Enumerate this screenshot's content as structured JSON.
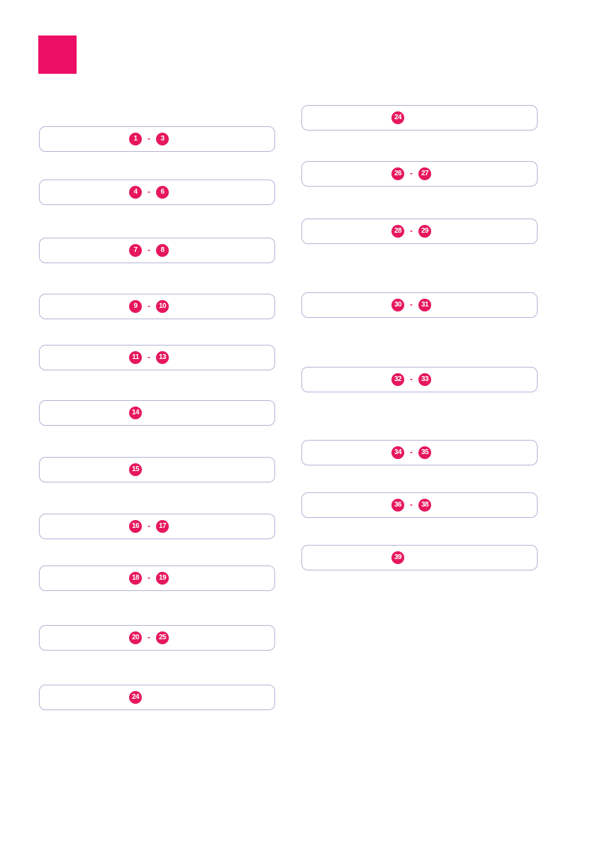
{
  "header": {
    "logo_color": "#ed0f66"
  },
  "colors": {
    "page_background": "#ffffff",
    "box_border": "#b4b3d8",
    "badge_fill": "#e6175c",
    "badge_text": "#ffffff"
  },
  "range_separator": "-",
  "columns": [
    {
      "name": "left",
      "boxes": [
        {
          "badges": [
            "1",
            "3"
          ]
        },
        {
          "badges": [
            "4",
            "6"
          ]
        },
        {
          "badges": [
            "7",
            "8"
          ]
        },
        {
          "badges": [
            "9",
            "10"
          ]
        },
        {
          "badges": [
            "11",
            "13"
          ]
        },
        {
          "badges": [
            "14"
          ]
        },
        {
          "badges": [
            "15"
          ]
        },
        {
          "badges": [
            "16",
            "17"
          ]
        },
        {
          "badges": [
            "18",
            "19"
          ]
        },
        {
          "badges": [
            "20",
            "25"
          ]
        },
        {
          "badges": [
            "24"
          ]
        }
      ]
    },
    {
      "name": "right",
      "boxes": [
        {
          "badges": [
            "24"
          ]
        },
        {
          "badges": [
            "26",
            "27"
          ]
        },
        {
          "badges": [
            "28",
            "29"
          ]
        },
        {
          "badges": [
            "30",
            "31"
          ]
        },
        {
          "badges": [
            "32",
            "33"
          ]
        },
        {
          "badges": [
            "34",
            "35"
          ]
        },
        {
          "badges": [
            "36",
            "38"
          ]
        },
        {
          "badges": [
            "39"
          ]
        }
      ]
    }
  ]
}
